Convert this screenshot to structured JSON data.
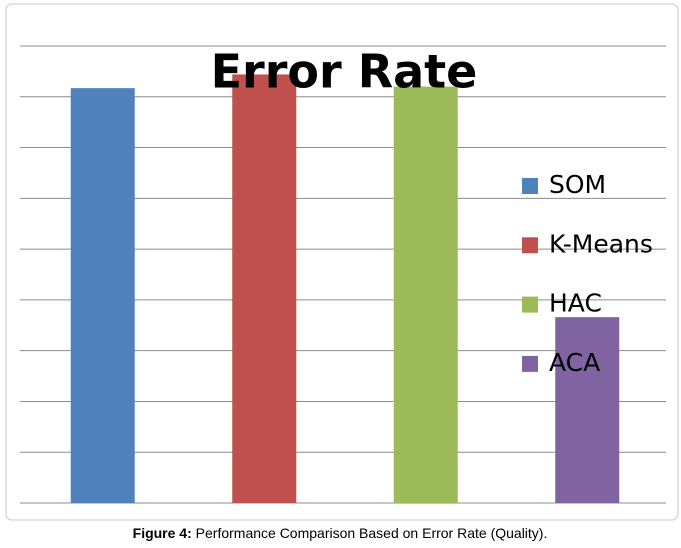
{
  "chart_data": {
    "type": "bar",
    "title": "Error Rate",
    "series": [
      {
        "name": "SOM",
        "color": "#4f81bd",
        "values": [
          8.17
        ]
      },
      {
        "name": "K-Means",
        "color": "#c0504d",
        "values": [
          8.44
        ]
      },
      {
        "name": "HAC",
        "color": "#9bbb59",
        "values": [
          8.2
        ]
      },
      {
        "name": "ACA",
        "color": "#8064a2",
        "values": [
          3.66
        ]
      }
    ],
    "ylim": [
      0,
      9
    ],
    "yticks": [
      0,
      1,
      2,
      3,
      4,
      5,
      6,
      7,
      8,
      9
    ],
    "grid": true,
    "legend": "right"
  },
  "caption": {
    "label": "Figure 4:",
    "text": "Performance Comparison Based on Error Rate (Quality)."
  }
}
